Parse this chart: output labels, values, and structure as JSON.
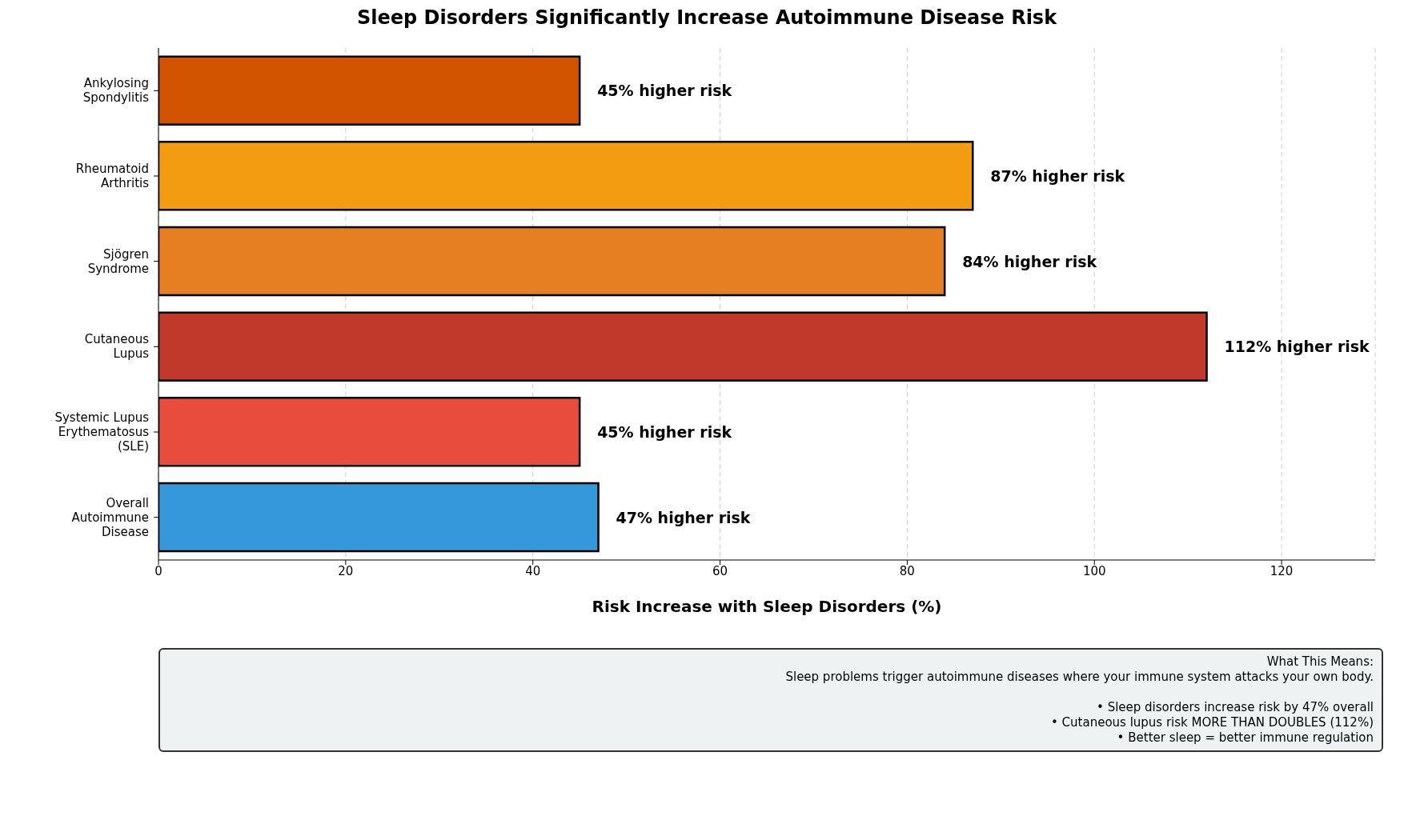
{
  "chart_data": {
    "type": "bar",
    "orientation": "horizontal",
    "title": "Sleep Disorders Significantly Increase Autoimmune Disease Risk",
    "xlabel": "Risk Increase with Sleep Disorders (%)",
    "categories": [
      "Ankylosing\nSpondylitis",
      "Rheumatoid\nArthritis",
      "Sjögren\nSyndrome",
      "Cutaneous\nLupus",
      "Systemic Lupus\nErythematosus\n(SLE)",
      "Overall\nAutoimmune\nDisease"
    ],
    "values": [
      45,
      87,
      84,
      112,
      45,
      47
    ],
    "colors": [
      "#d35400",
      "#f39c12",
      "#e67e22",
      "#c0392b",
      "#e74c3c",
      "#3498db"
    ],
    "value_labels": [
      "45% higher risk",
      "87% higher risk",
      "84% higher risk",
      "112% higher risk",
      "45% higher risk",
      "47% higher risk"
    ],
    "xlim": [
      0,
      130
    ],
    "xticks": [
      0,
      20,
      40,
      60,
      80,
      100,
      120
    ],
    "grid": "x",
    "annotations": [
      "What This Means:\nSleep problems trigger autoimmune diseases where your immune system attacks your own body.\n\n• Sleep disorders increase risk by 47% overall\n• Cutaneous lupus risk MORE THAN DOUBLES (112%)\n• Better sleep = better immune regulation"
    ]
  }
}
